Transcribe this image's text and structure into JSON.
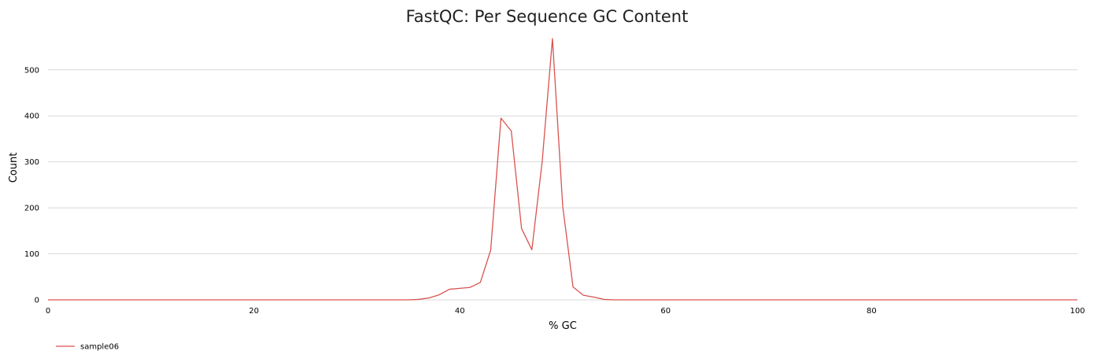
{
  "chart_data": {
    "type": "line",
    "title": "FastQC: Per Sequence GC Content",
    "xlabel": "% GC",
    "ylabel": "Count",
    "xlim": [
      0,
      100
    ],
    "ylim": [
      0,
      580
    ],
    "x_ticks": [
      0,
      20,
      40,
      60,
      80,
      100
    ],
    "y_ticks": [
      0,
      100,
      200,
      300,
      400,
      500
    ],
    "grid": true,
    "legend_position": "bottom-left",
    "series": [
      {
        "name": "sample06",
        "color": "#d9534f",
        "x": [
          0,
          35,
          36,
          37,
          38,
          39,
          40,
          41,
          42,
          43,
          44,
          45,
          46,
          47,
          48,
          49,
          50,
          51,
          52,
          53,
          54,
          55,
          100
        ],
        "y": [
          0,
          0,
          1,
          4,
          11,
          23,
          25,
          27,
          38,
          108,
          395,
          367,
          155,
          109,
          300,
          568,
          203,
          28,
          10,
          6,
          1,
          0,
          0
        ]
      }
    ]
  }
}
